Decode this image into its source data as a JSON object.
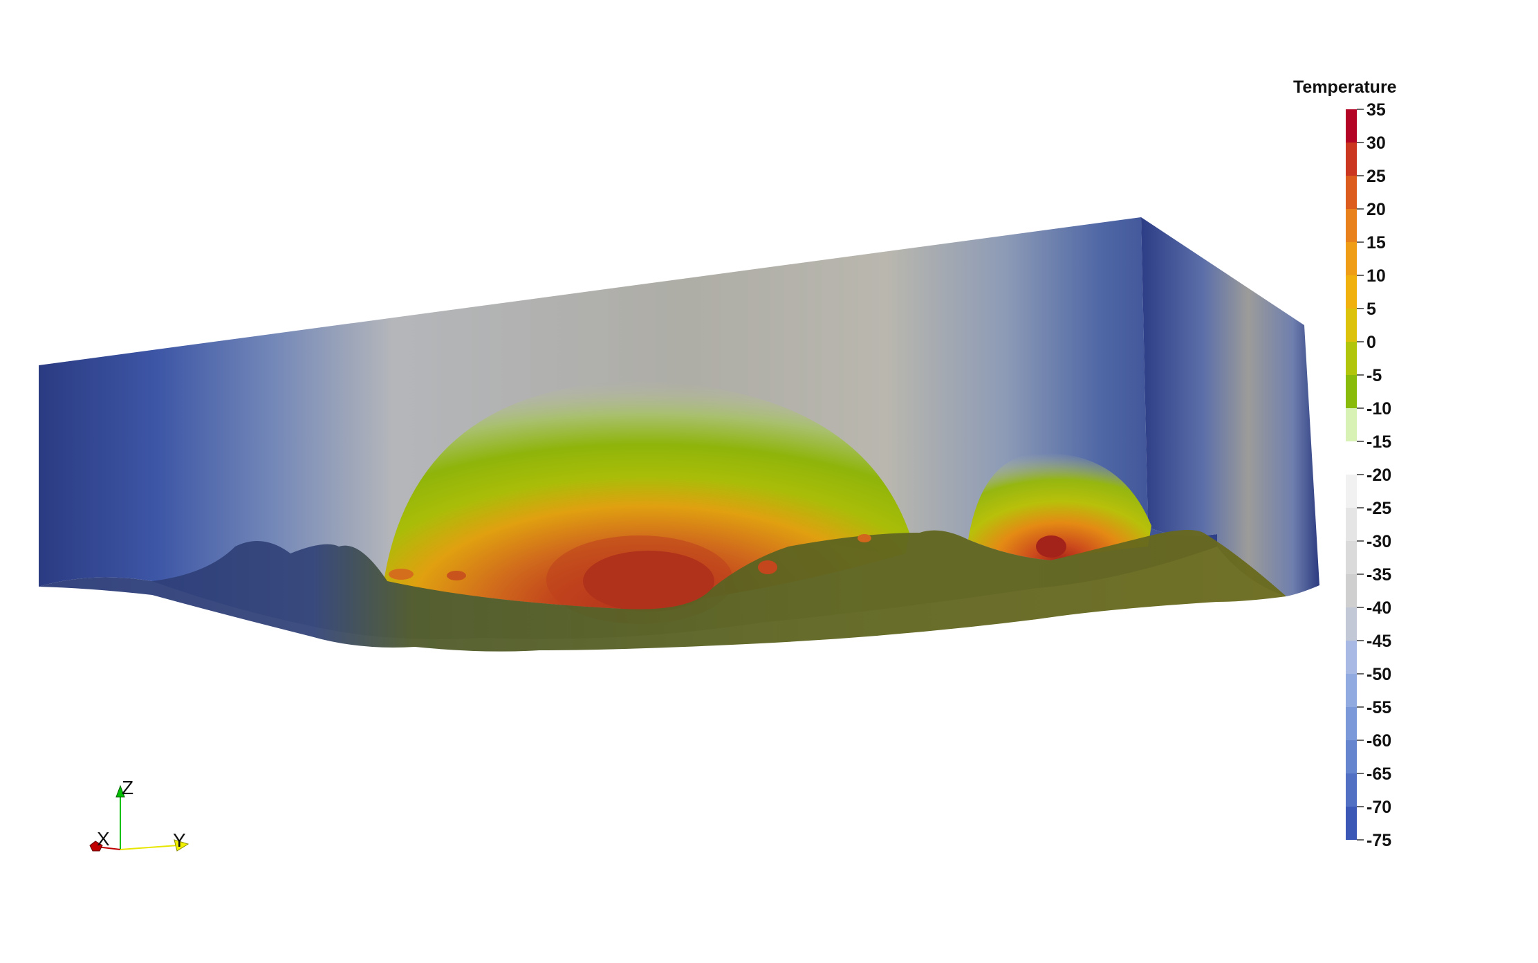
{
  "colorbar": {
    "title": "Temperature",
    "range": [
      -75,
      35
    ],
    "step": 5,
    "labels": [
      "35",
      "30",
      "25",
      "20",
      "15",
      "10",
      "5",
      "0",
      "-5",
      "-10",
      "-15",
      "-20",
      "-25",
      "-30",
      "-35",
      "-40",
      "-45",
      "-50",
      "-55",
      "-60",
      "-65",
      "-70",
      "-75"
    ],
    "colors": [
      "#b40426",
      "#cb3621",
      "#dc5c1e",
      "#e8811b",
      "#ef9d16",
      "#f0b00e",
      "#dcc20a",
      "#b1c60a",
      "#88bb0a",
      "#d7f2b4",
      "#ffffff",
      "#f1f1f1",
      "#e5e5e5",
      "#dadada",
      "#cfcfcf",
      "#c2c8d6",
      "#a8bae3",
      "#91aae0",
      "#7b98d8",
      "#6685cf",
      "#5170c3",
      "#3b58b6"
    ]
  },
  "orientation_axes": {
    "x_label": "X",
    "y_label": "Y",
    "z_label": "Z",
    "x_color": "#c00000",
    "y_color": "#f2f200",
    "z_color": "#00c000"
  },
  "scene": {
    "cold_color": "#2b3b82",
    "mid_color": "#a3a39b",
    "terrain_color": "#5a5e1e",
    "hot_color": "#b3261f"
  }
}
